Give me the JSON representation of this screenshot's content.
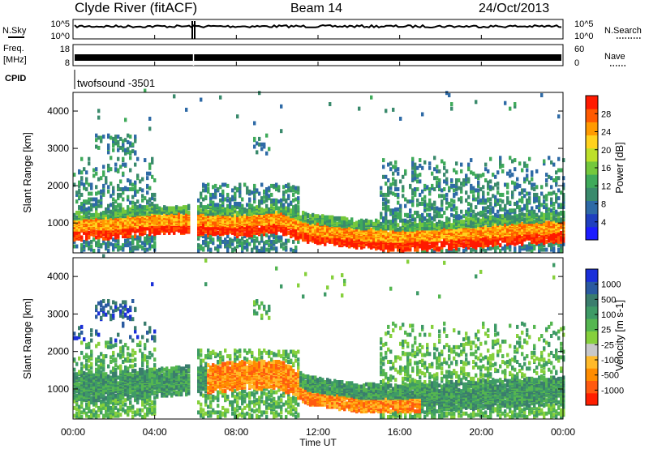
{
  "header": {
    "station": "Clyde River (fitACF)",
    "beam": "Beam 14",
    "date": "24/Oct/2013"
  },
  "top_panels": {
    "nsky": {
      "label": "N.Sky",
      "ticks": [
        "10^5",
        "10^0"
      ],
      "right_label": "N.Search",
      "right_ticks": [
        "10^5",
        "10^0"
      ]
    },
    "freq": {
      "label_line1": "Freq.",
      "label_line2": "[MHz]",
      "ticks": [
        "18",
        "8"
      ],
      "right_label": "Nave",
      "right_ticks": [
        "60",
        "0"
      ]
    },
    "cpid": {
      "label": "CPID",
      "value": "twofsound -3501"
    }
  },
  "x_axis": {
    "label": "Time UT",
    "ticks": [
      "00:00",
      "04:00",
      "08:00",
      "12:00",
      "16:00",
      "20:00",
      "00:00"
    ]
  },
  "colors": {
    "power_scale": [
      "#1c1cff",
      "#1f3fbf",
      "#2e6aa6",
      "#3a8a6c",
      "#3faa5a",
      "#74c83c",
      "#bde02a",
      "#ffd21e",
      "#ff9a00",
      "#ff5a00",
      "#ff1a00"
    ],
    "velocity_scale": [
      "#1a2fd9",
      "#2a5aa0",
      "#3a7d6d",
      "#3e9a66",
      "#55b650",
      "#86d03c",
      "#c8c8c8",
      "#ffba2a",
      "#ff8c00",
      "#ff5a10",
      "#ff1e00"
    ]
  },
  "chart_data": [
    {
      "type": "heatmap",
      "title": "Power",
      "ylabel": "Slant Range [km]",
      "xlabel": "",
      "yticks": [
        1000,
        2000,
        3000,
        4000
      ],
      "ylim": [
        200,
        4500
      ],
      "xlim_hours": [
        0,
        24
      ],
      "colorbar": {
        "label": "Power [dB]",
        "ticks": [
          "4",
          "8",
          "12",
          "16",
          "20",
          "24",
          "28"
        ],
        "range": [
          0,
          30
        ]
      },
      "main_band_km": [
        [
          0,
          900
        ],
        [
          2,
          950
        ],
        [
          4,
          1050
        ],
        [
          6,
          1050
        ],
        [
          8,
          1000
        ],
        [
          10,
          1100
        ],
        [
          11.5,
          800
        ],
        [
          14,
          650
        ],
        [
          16,
          600
        ],
        [
          18,
          650
        ],
        [
          20,
          720
        ],
        [
          22,
          800
        ],
        [
          24,
          850
        ]
      ]
    },
    {
      "type": "heatmap",
      "title": "Velocity",
      "ylabel": "Slant Range [km]",
      "xlabel": "Time UT",
      "yticks": [
        1000,
        2000,
        3000,
        4000
      ],
      "ylim": [
        200,
        4500
      ],
      "xlim_hours": [
        0,
        24
      ],
      "colorbar": {
        "label": "Velocity [m s-1]",
        "ticks": [
          "1000",
          "500",
          "100",
          "25",
          "-25",
          "-100",
          "-500",
          "-1000"
        ],
        "range": [
          -1000,
          1000
        ]
      },
      "main_band_km": [
        [
          0,
          1000
        ],
        [
          2,
          1050
        ],
        [
          4,
          1100
        ],
        [
          6,
          1200
        ],
        [
          8,
          1300
        ],
        [
          10,
          1350
        ],
        [
          11.5,
          900
        ],
        [
          14,
          700
        ],
        [
          16,
          700
        ],
        [
          18,
          750
        ],
        [
          20,
          800
        ],
        [
          22,
          850
        ],
        [
          24,
          900
        ]
      ]
    }
  ]
}
